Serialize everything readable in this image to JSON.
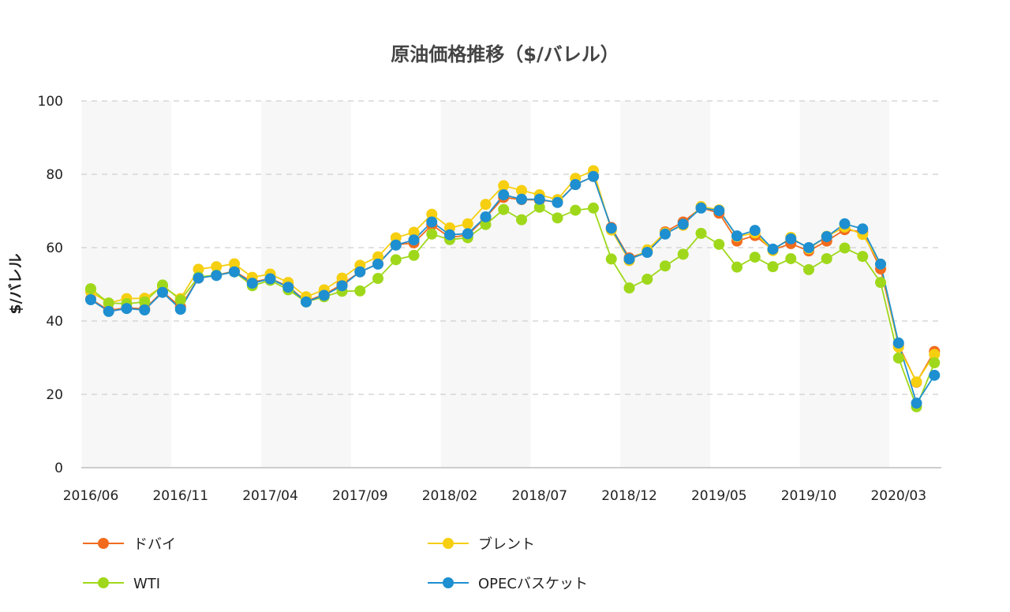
{
  "chart_data": {
    "type": "line",
    "title": "原油価格推移（$/バレル）",
    "xlabel": "",
    "ylabel": "$/バレル",
    "ylim": [
      0,
      100
    ],
    "yticks": [
      0,
      20,
      40,
      60,
      80,
      100
    ],
    "grid": true,
    "legend_position": "bottom",
    "x_tick_labels": [
      "2016/06",
      "2016/11",
      "2017/04",
      "2017/09",
      "2018/02",
      "2018/07",
      "2018/12",
      "2019/05",
      "2019/10",
      "2020/03"
    ],
    "categories": [
      "2016/06",
      "2016/07",
      "2016/08",
      "2016/09",
      "2016/10",
      "2016/11",
      "2016/12",
      "2017/01",
      "2017/02",
      "2017/03",
      "2017/04",
      "2017/05",
      "2017/06",
      "2017/07",
      "2017/08",
      "2017/09",
      "2017/10",
      "2017/11",
      "2017/12",
      "2018/01",
      "2018/02",
      "2018/03",
      "2018/04",
      "2018/05",
      "2018/06",
      "2018/07",
      "2018/08",
      "2018/09",
      "2018/10",
      "2018/11",
      "2018/12",
      "2019/01",
      "2019/02",
      "2019/03",
      "2019/04",
      "2019/05",
      "2019/06",
      "2019/07",
      "2019/08",
      "2019/09",
      "2019/10",
      "2019/11",
      "2019/12",
      "2020/01",
      "2020/02",
      "2020/03",
      "2020/04",
      "2020/05"
    ],
    "series": [
      {
        "name": "ドバイ",
        "color": "#f26b1d",
        "values": [
          46.0,
          42.9,
          43.6,
          43.3,
          48.0,
          43.8,
          51.7,
          52.5,
          53.6,
          50.6,
          51.6,
          49.4,
          45.4,
          47.2,
          50.0,
          53.4,
          55.6,
          60.8,
          61.3,
          66.2,
          62.8,
          63.4,
          68.2,
          73.7,
          73.1,
          73.0,
          72.4,
          77.2,
          79.4,
          65.5,
          57.2,
          58.9,
          64.3,
          67.0,
          70.9,
          69.4,
          61.8,
          63.3,
          59.4,
          61.1,
          59.1,
          61.8,
          64.9,
          64.3,
          54.2,
          33.4,
          23.3,
          31.7
        ]
      },
      {
        "name": "ブレント",
        "color": "#f6cf11",
        "values": [
          48.0,
          44.9,
          46.1,
          46.2,
          49.4,
          46.1,
          54.1,
          54.8,
          55.6,
          51.9,
          52.8,
          50.5,
          46.6,
          48.5,
          51.7,
          55.2,
          57.5,
          62.7,
          64.2,
          69.1,
          65.4,
          66.5,
          71.8,
          76.9,
          75.6,
          74.4,
          73.1,
          78.9,
          81.0,
          64.8,
          56.5,
          59.4,
          64.0,
          66.1,
          71.2,
          70.3,
          63.0,
          64.0,
          59.2,
          62.8,
          59.7,
          63.1,
          65.6,
          63.6,
          55.5,
          32.9,
          23.4,
          30.9
        ]
      },
      {
        "name": "WTI",
        "color": "#9fd81b",
        "values": [
          48.8,
          44.9,
          44.7,
          45.2,
          49.8,
          45.7,
          52.0,
          52.5,
          53.4,
          49.6,
          51.1,
          48.5,
          45.2,
          46.6,
          48.1,
          48.2,
          51.6,
          56.7,
          57.9,
          63.7,
          62.2,
          62.7,
          66.3,
          70.4,
          67.6,
          71.0,
          68.1,
          70.2,
          70.8,
          56.9,
          49.0,
          51.4,
          55.0,
          58.2,
          63.9,
          60.9,
          54.7,
          57.4,
          54.8,
          57.0,
          54.0,
          57.0,
          59.9,
          57.6,
          50.5,
          29.9,
          16.6,
          28.6
        ]
      },
      {
        "name": "OPECバスケット",
        "color": "#1e8fd0",
        "values": [
          45.8,
          42.6,
          43.4,
          43.0,
          47.8,
          43.2,
          51.7,
          52.4,
          53.4,
          50.3,
          51.5,
          49.2,
          45.2,
          47.0,
          49.6,
          53.4,
          55.5,
          60.7,
          62.1,
          67.0,
          63.5,
          63.8,
          68.4,
          74.4,
          73.2,
          73.2,
          72.3,
          77.2,
          79.4,
          65.3,
          56.9,
          58.7,
          63.7,
          66.4,
          70.8,
          70.1,
          63.2,
          64.7,
          59.6,
          62.4,
          60.0,
          63.0,
          66.5,
          65.1,
          55.5,
          34.0,
          17.6,
          25.2
        ]
      }
    ]
  }
}
